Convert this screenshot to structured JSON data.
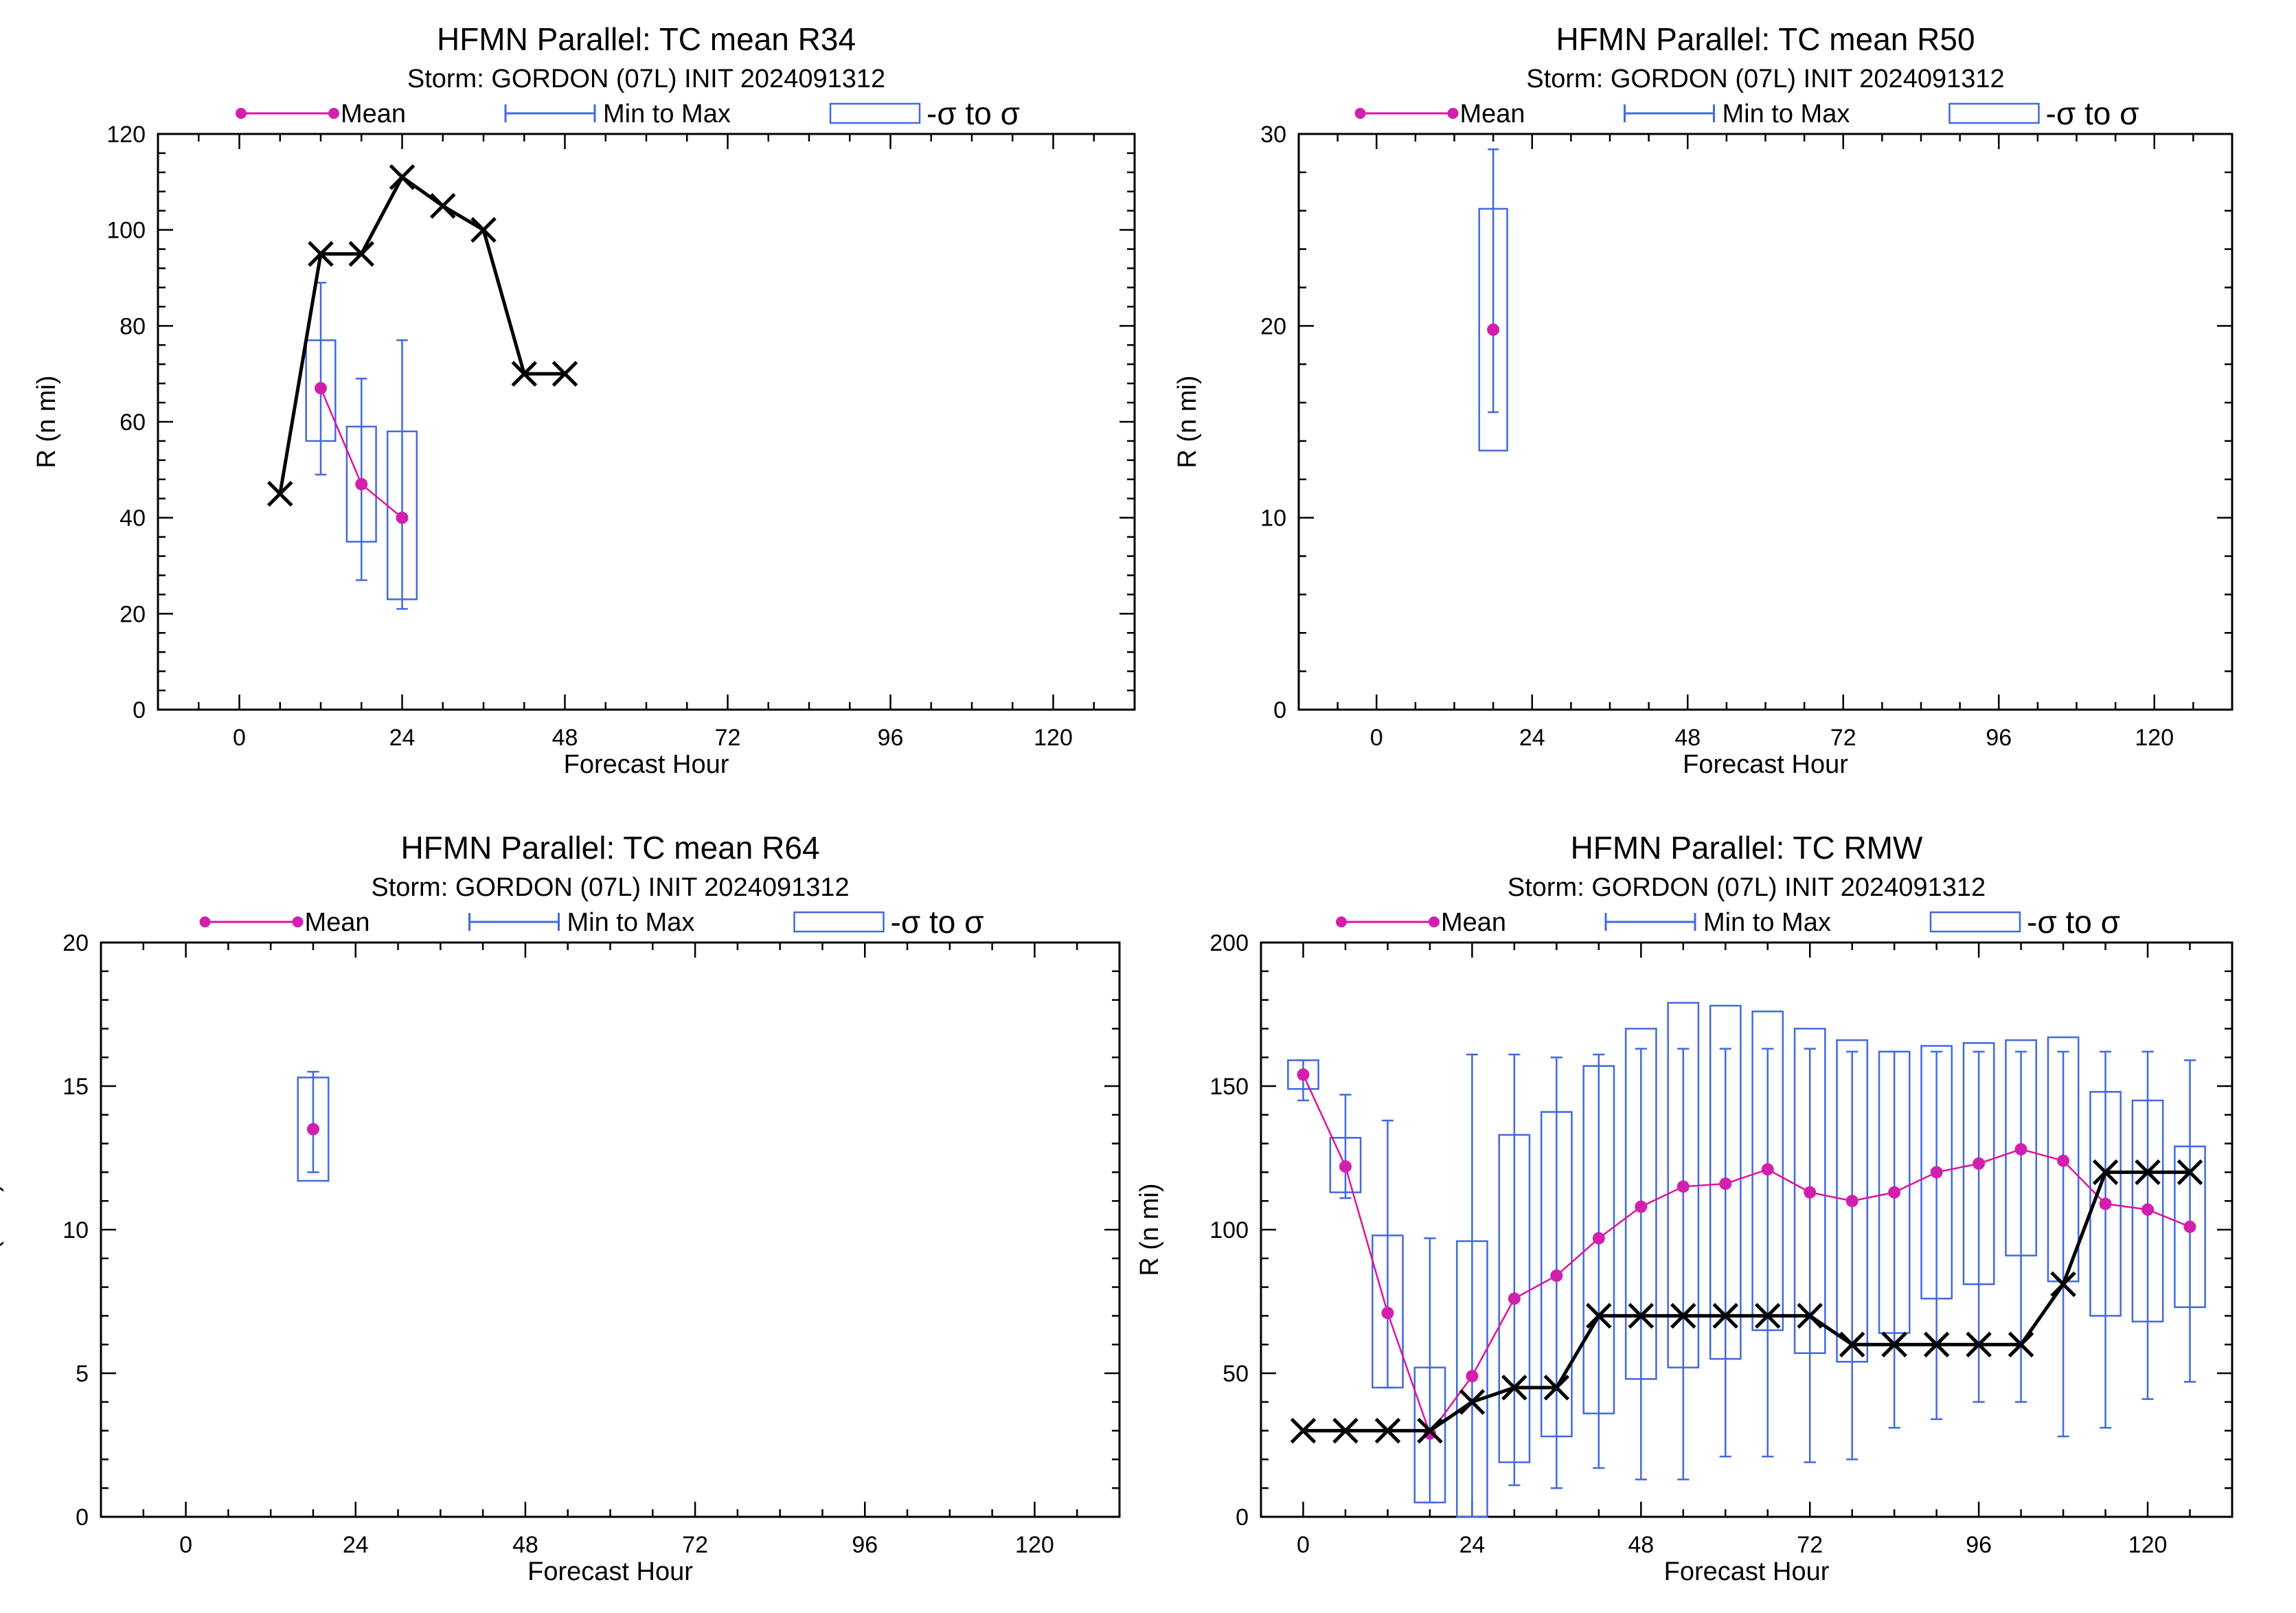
{
  "panels": [
    {
      "chart_data": {
        "type": "line",
        "title": "HFMN Parallel: TC mean R34",
        "subtitle": "Storm: GORDON (07L) INIT 2024091312",
        "xlabel": "Forecast Hour",
        "ylabel": "R (n mi)",
        "xlim": [
          -12,
          132
        ],
        "ylim": [
          0,
          120
        ],
        "xticks": [
          0,
          24,
          48,
          72,
          96,
          120
        ],
        "yticks": [
          0,
          20,
          40,
          60,
          80,
          100,
          120
        ],
        "legend": {
          "placement": "top",
          "items": [
            "Mean",
            "Min to Max",
            "-σ to σ"
          ]
        },
        "series": [
          {
            "name": "Mean",
            "color": "#e0129a",
            "x": [
              12,
              18,
              24
            ],
            "y": [
              67,
              47,
              40
            ]
          },
          {
            "color": "#000000",
            "marker": "x",
            "x": [
              6,
              12,
              18,
              24,
              30,
              36,
              42,
              48
            ],
            "y": [
              45,
              95,
              95,
              111,
              105,
              100,
              70,
              70
            ]
          }
        ],
        "boxes": [
          {
            "x": 12,
            "min": 49,
            "max": 89,
            "lo": 56,
            "hi": 77
          },
          {
            "x": 18,
            "min": 27,
            "max": 69,
            "lo": 35,
            "hi": 59
          },
          {
            "x": 24,
            "min": 21,
            "max": 77,
            "lo": 23,
            "hi": 58
          }
        ]
      }
    },
    {
      "chart_data": {
        "type": "line",
        "title": "HFMN Parallel: TC mean R50",
        "subtitle": "Storm: GORDON (07L) INIT 2024091312",
        "xlabel": "Forecast Hour",
        "ylabel": "R (n mi)",
        "xlim": [
          -12,
          132
        ],
        "ylim": [
          0,
          30
        ],
        "xticks": [
          0,
          24,
          48,
          72,
          96,
          120
        ],
        "yticks": [
          0,
          10,
          20,
          30
        ],
        "legend": {
          "placement": "top",
          "items": [
            "Mean",
            "Min to Max",
            "-σ to σ"
          ]
        },
        "series": [
          {
            "name": "Mean",
            "color": "#e0129a",
            "x": [
              18
            ],
            "y": [
              19.8
            ]
          }
        ],
        "boxes": [
          {
            "x": 18,
            "min": 15.5,
            "max": 29.2,
            "lo": 13.5,
            "hi": 26.1
          }
        ]
      }
    },
    {
      "chart_data": {
        "type": "line",
        "title": "HFMN Parallel: TC mean R64",
        "subtitle": "Storm: GORDON (07L) INIT 2024091312",
        "xlabel": "Forecast Hour",
        "ylabel": "R (n mi)",
        "xlim": [
          -12,
          132
        ],
        "ylim": [
          0,
          20
        ],
        "xticks": [
          0,
          24,
          48,
          72,
          96,
          120
        ],
        "yticks": [
          0,
          5,
          10,
          15,
          20
        ],
        "legend": {
          "placement": "top",
          "items": [
            "Mean",
            "Min to Max",
            "-σ to σ"
          ]
        },
        "series": [
          {
            "name": "Mean",
            "color": "#e0129a",
            "x": [
              18
            ],
            "y": [
              13.5
            ]
          }
        ],
        "boxes": [
          {
            "x": 18,
            "min": 12.0,
            "max": 15.5,
            "lo": 11.7,
            "hi": 15.3
          }
        ]
      }
    },
    {
      "chart_data": {
        "type": "line",
        "title": "HFMN Parallel: TC RMW",
        "subtitle": "Storm: GORDON (07L) INIT 2024091312",
        "xlabel": "Forecast Hour",
        "ylabel": "R (n mi)",
        "xlim": [
          -6,
          132
        ],
        "ylim": [
          0,
          200
        ],
        "xticks": [
          0,
          24,
          48,
          72,
          96,
          120
        ],
        "yticks": [
          0,
          50,
          100,
          150,
          200
        ],
        "legend": {
          "placement": "top",
          "items": [
            "Mean",
            "Min to Max",
            "-σ to σ"
          ]
        },
        "series": [
          {
            "name": "Mean",
            "color": "#e0129a",
            "x": [
              0,
              6,
              12,
              18,
              24,
              30,
              36,
              42,
              48,
              54,
              60,
              66,
              72,
              78,
              84,
              90,
              96,
              102,
              108,
              114,
              120,
              126
            ],
            "y": [
              154,
              122,
              71,
              29,
              49,
              76,
              84,
              97,
              108,
              115,
              116,
              121,
              113,
              110,
              113,
              120,
              123,
              128,
              124,
              109,
              107,
              101
            ]
          },
          {
            "color": "#000000",
            "marker": "x",
            "x": [
              0,
              6,
              12,
              18,
              24,
              30,
              36,
              42,
              48,
              54,
              60,
              66,
              72,
              78,
              84,
              90,
              96,
              102,
              108,
              114,
              120,
              126
            ],
            "y": [
              30,
              30,
              30,
              30,
              40,
              45,
              45,
              70,
              70,
              70,
              70,
              70,
              70,
              60,
              60,
              60,
              60,
              60,
              81,
              120,
              120,
              120
            ]
          }
        ],
        "boxes": [
          {
            "x": 0,
            "min": 145,
            "max": 159,
            "lo": 149,
            "hi": 159
          },
          {
            "x": 6,
            "min": 111,
            "max": 147,
            "lo": 113,
            "hi": 132
          },
          {
            "x": 12,
            "min": 45,
            "max": 138,
            "lo": 45,
            "hi": 98
          },
          {
            "x": 18,
            "min": 5,
            "max": 97,
            "lo": 5,
            "hi": 52
          },
          {
            "x": 24,
            "min": 0,
            "max": 161,
            "lo": 0,
            "hi": 96
          },
          {
            "x": 30,
            "min": 11,
            "max": 161,
            "lo": 19,
            "hi": 133
          },
          {
            "x": 36,
            "min": 10,
            "max": 160,
            "lo": 28,
            "hi": 141
          },
          {
            "x": 42,
            "min": 17,
            "max": 161,
            "lo": 36,
            "hi": 157
          },
          {
            "x": 48,
            "min": 13,
            "max": 163,
            "lo": 48,
            "hi": 170
          },
          {
            "x": 54,
            "min": 13,
            "max": 163,
            "lo": 52,
            "hi": 179
          },
          {
            "x": 60,
            "min": 21,
            "max": 163,
            "lo": 55,
            "hi": 178
          },
          {
            "x": 66,
            "min": 21,
            "max": 163,
            "lo": 65,
            "hi": 176
          },
          {
            "x": 72,
            "min": 19,
            "max": 163,
            "lo": 57,
            "hi": 170
          },
          {
            "x": 78,
            "min": 20,
            "max": 162,
            "lo": 54,
            "hi": 166
          },
          {
            "x": 84,
            "min": 31,
            "max": 162,
            "lo": 64,
            "hi": 162
          },
          {
            "x": 90,
            "min": 34,
            "max": 162,
            "lo": 76,
            "hi": 164
          },
          {
            "x": 96,
            "min": 40,
            "max": 162,
            "lo": 81,
            "hi": 165
          },
          {
            "x": 102,
            "min": 40,
            "max": 162,
            "lo": 91,
            "hi": 166
          },
          {
            "x": 108,
            "min": 28,
            "max": 162,
            "lo": 82,
            "hi": 167
          },
          {
            "x": 114,
            "min": 31,
            "max": 162,
            "lo": 70,
            "hi": 148
          },
          {
            "x": 120,
            "min": 41,
            "max": 162,
            "lo": 68,
            "hi": 145
          },
          {
            "x": 126,
            "min": 47,
            "max": 159,
            "lo": 73,
            "hi": 129
          }
        ]
      }
    }
  ]
}
